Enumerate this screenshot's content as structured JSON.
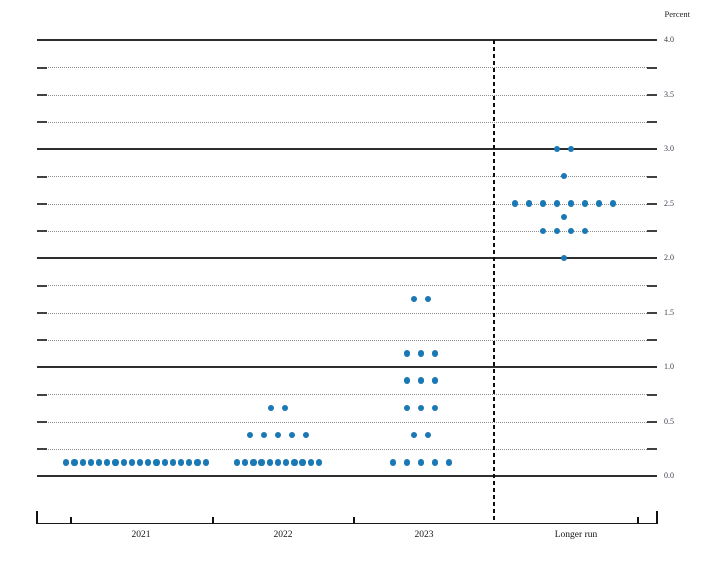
{
  "chart_data": {
    "type": "scatter",
    "variant": "fomc-dot-plot",
    "title": "",
    "ylabel": "Percent",
    "xlabel": "",
    "categories": [
      "2021",
      "2022",
      "2023",
      "Longer run"
    ],
    "series": [
      {
        "name": "2021",
        "dots": [
          {
            "value": 0.125,
            "count": 18
          }
        ]
      },
      {
        "name": "2022",
        "dots": [
          {
            "value": 0.125,
            "count": 11
          },
          {
            "value": 0.375,
            "count": 5
          },
          {
            "value": 0.625,
            "count": 2
          }
        ]
      },
      {
        "name": "2023",
        "dots": [
          {
            "value": 0.125,
            "count": 5
          },
          {
            "value": 0.375,
            "count": 2
          },
          {
            "value": 0.625,
            "count": 3
          },
          {
            "value": 0.875,
            "count": 3
          },
          {
            "value": 1.125,
            "count": 3
          },
          {
            "value": 1.625,
            "count": 2
          }
        ]
      },
      {
        "name": "Longer run",
        "dots": [
          {
            "value": 2.0,
            "count": 1
          },
          {
            "value": 2.25,
            "count": 4
          },
          {
            "value": 2.375,
            "count": 1
          },
          {
            "value": 2.5,
            "count": 8
          },
          {
            "value": 2.75,
            "count": 1
          },
          {
            "value": 3.0,
            "count": 2
          }
        ]
      }
    ],
    "ylim": [
      0.0,
      4.0
    ],
    "grid_step": 0.25,
    "ytick_label_step": 0.5,
    "ytick_labels": [
      "4.0",
      "3.5",
      "3.0",
      "2.5",
      "2.0",
      "1.5",
      "1.0",
      "0.5",
      "0.0"
    ],
    "solid_gridlines_at": [
      0,
      1,
      2,
      3,
      4
    ],
    "grid": true,
    "legend_position": "none",
    "separator_after_category": "2023",
    "dot_color": "#1a78b4"
  }
}
